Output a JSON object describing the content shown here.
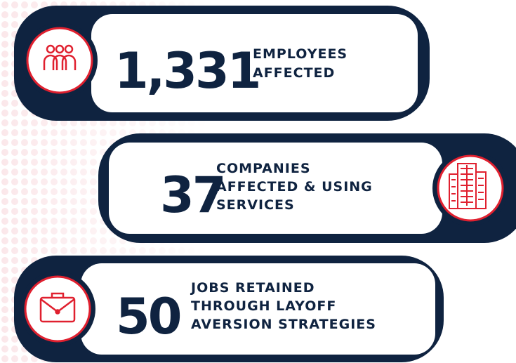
{
  "stats": [
    {
      "value": "1,331",
      "label_lines": [
        "EMPLOYEES",
        "AFFECTED"
      ]
    },
    {
      "value": "37",
      "label_lines": [
        "COMPANIES",
        "AFFECTED & USING",
        "SERVICES"
      ]
    },
    {
      "value": "50",
      "label_lines": [
        "JOBS RETAINED",
        "THROUGH LAYOFF",
        "AVERSION STRATEGIES"
      ]
    }
  ]
}
